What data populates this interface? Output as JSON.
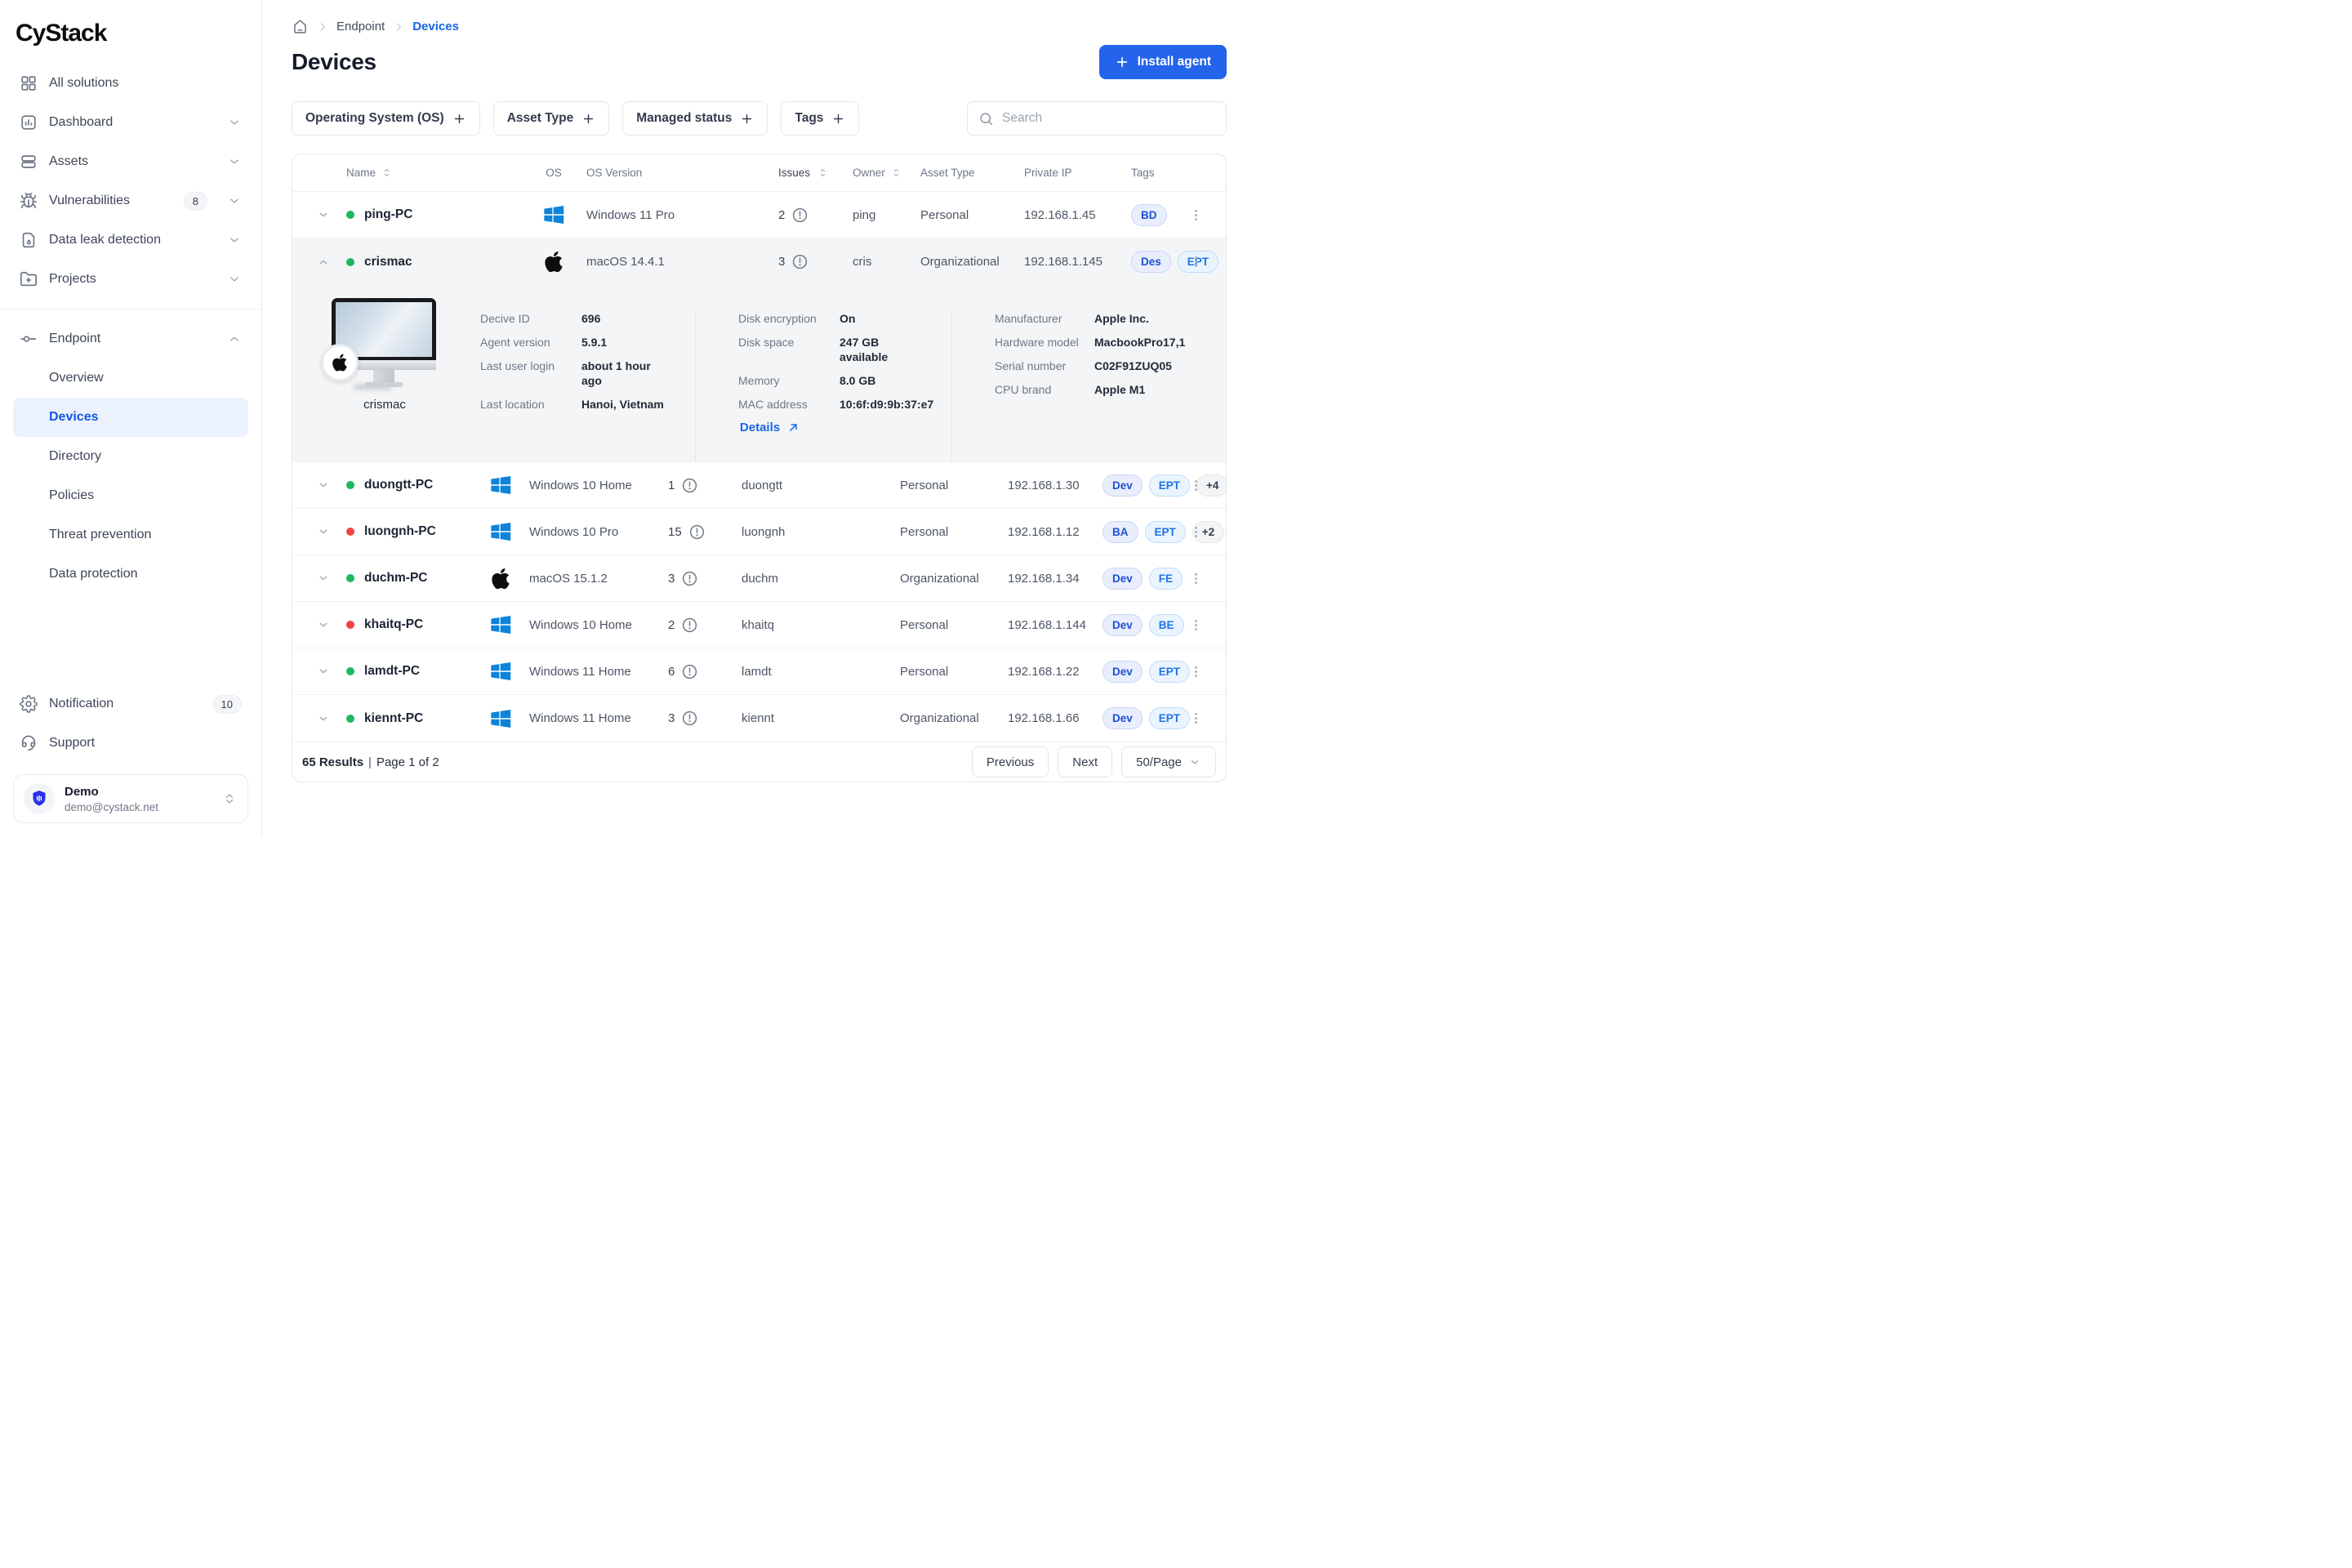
{
  "app": {
    "logo": "CyStack"
  },
  "colors": {
    "accent": "#2464eb",
    "link_blue": "#1766e8",
    "online": "#1cb85f",
    "offline": "#ef4444",
    "windows": "#0e83d8",
    "active_item_bg": "#ecf2fd",
    "tag_indigo_bg": "#e9eefc",
    "tag_indigo_text": "#1d4fd7",
    "tag_blue_bg": "#eaf4fe",
    "tag_blue_text": "#1e74e8"
  },
  "sidebar": {
    "items": [
      {
        "label": "All solutions",
        "icon": "grid-icon"
      },
      {
        "label": "Dashboard",
        "icon": "dashboard-icon",
        "chevron": "down"
      },
      {
        "label": "Assets",
        "icon": "assets-icon",
        "chevron": "down"
      },
      {
        "label": "Vulnerabilities",
        "icon": "bug-icon",
        "badge": "8",
        "chevron": "down"
      },
      {
        "label": "Data leak detection",
        "icon": "document-drop-icon",
        "chevron": "down"
      },
      {
        "label": "Projects",
        "icon": "folder-plus-icon",
        "chevron": "down"
      }
    ],
    "endpoint": {
      "label": "Endpoint",
      "chevron": "up",
      "children": [
        "Overview",
        "Devices",
        "Directory",
        "Policies",
        "Threat prevention",
        "Data protection"
      ],
      "active_child": "Devices"
    },
    "bottom": [
      {
        "label": "Notification",
        "icon": "gear-icon",
        "badge": "10"
      },
      {
        "label": "Support",
        "icon": "headset-icon"
      }
    ],
    "user": {
      "name": "Demo",
      "email": "demo@cystack.net"
    }
  },
  "breadcrumb": {
    "parent": "Endpoint",
    "current": "Devices"
  },
  "header": {
    "title": "Devices",
    "install_button": "Install agent"
  },
  "filters": {
    "chips": [
      "Operating System (OS)",
      "Asset Type",
      "Managed status",
      "Tags"
    ],
    "search_placeholder": "Search"
  },
  "table": {
    "columns": [
      "Name",
      "OS",
      "OS Version",
      "Issues",
      "Owner",
      "Asset Type",
      "Private IP",
      "Tags"
    ],
    "sortable_columns": [
      "Name",
      "Issues",
      "Owner"
    ],
    "rows": [
      {
        "name": "ping-PC",
        "status": "online",
        "os": "windows",
        "os_version": "Windows 11 Pro",
        "issues": "2",
        "owner": "ping",
        "asset_type": "Personal",
        "private_ip": "192.168.1.45",
        "tags": [
          {
            "label": "BD",
            "style": "indigo"
          }
        ],
        "expanded": false,
        "group": 1
      },
      {
        "name": "crismac",
        "status": "online",
        "os": "apple",
        "os_version": "macOS 14.4.1",
        "issues": "3",
        "owner": "cris",
        "asset_type": "Organizational",
        "private_ip": "192.168.1.145",
        "tags": [
          {
            "label": "Des",
            "style": "indigo"
          },
          {
            "label": "EPT",
            "style": "blue"
          }
        ],
        "expanded": true,
        "group": 1
      },
      {
        "name": "duongtt-PC",
        "status": "online",
        "os": "windows",
        "os_version": "Windows 10 Home",
        "issues": "1",
        "owner": "duongtt",
        "asset_type": "Personal",
        "private_ip": "192.168.1.30",
        "tags": [
          {
            "label": "Dev",
            "style": "indigo"
          },
          {
            "label": "EPT",
            "style": "blue"
          },
          {
            "label": "+4",
            "style": "gray"
          }
        ],
        "expanded": false,
        "group": 2
      },
      {
        "name": "luongnh-PC",
        "status": "offline",
        "os": "windows",
        "os_version": "Windows 10 Pro",
        "issues": "15",
        "owner": "luongnh",
        "asset_type": "Personal",
        "private_ip": "192.168.1.12",
        "tags": [
          {
            "label": "BA",
            "style": "indigo"
          },
          {
            "label": "EPT",
            "style": "blue"
          },
          {
            "label": "+2",
            "style": "gray"
          }
        ],
        "expanded": false,
        "group": 2
      },
      {
        "name": "duchm-PC",
        "status": "online",
        "os": "apple",
        "os_version": "macOS 15.1.2",
        "issues": "3",
        "owner": "duchm",
        "asset_type": "Organizational",
        "private_ip": "192.168.1.34",
        "tags": [
          {
            "label": "Dev",
            "style": "indigo"
          },
          {
            "label": "FE",
            "style": "blue"
          }
        ],
        "expanded": false,
        "group": 2
      },
      {
        "name": "khaitq-PC",
        "status": "offline",
        "os": "windows",
        "os_version": "Windows 10 Home",
        "issues": "2",
        "owner": "khaitq",
        "asset_type": "Personal",
        "private_ip": "192.168.1.144",
        "tags": [
          {
            "label": "Dev",
            "style": "indigo"
          },
          {
            "label": "BE",
            "style": "blue"
          }
        ],
        "expanded": false,
        "group": 2
      },
      {
        "name": "lamdt-PC",
        "status": "online",
        "os": "windows",
        "os_version": "Windows 11 Home",
        "issues": "6",
        "owner": "lamdt",
        "asset_type": "Personal",
        "private_ip": "192.168.1.22",
        "tags": [
          {
            "label": "Dev",
            "style": "indigo"
          },
          {
            "label": "EPT",
            "style": "blue"
          }
        ],
        "expanded": false,
        "group": 2
      },
      {
        "name": "kiennt-PC",
        "status": "online",
        "os": "windows",
        "os_version": "Windows 11 Home",
        "issues": "3",
        "owner": "kiennt",
        "asset_type": "Organizational",
        "private_ip": "192.168.1.66",
        "tags": [
          {
            "label": "Dev",
            "style": "indigo"
          },
          {
            "label": "EPT",
            "style": "blue"
          }
        ],
        "expanded": false,
        "group": 2
      }
    ]
  },
  "expanded_detail": {
    "device_caption": "crismac",
    "details_label": "Details",
    "sections": [
      {
        "rows": [
          {
            "label": "Decive ID",
            "value": "696"
          },
          {
            "label": "Agent version",
            "value": "5.9.1"
          },
          {
            "label": "Last user login",
            "value": "about 1 hour ago"
          },
          {
            "label": "Last location",
            "value": "Hanoi, Vietnam"
          }
        ]
      },
      {
        "rows": [
          {
            "label": "Disk encryption",
            "value": "On"
          },
          {
            "label": "Disk space",
            "value": "247 GB available"
          },
          {
            "label": "Memory",
            "value": "8.0 GB"
          },
          {
            "label": "MAC address",
            "value": "10:6f:d9:9b:37:e7"
          }
        ]
      },
      {
        "rows": [
          {
            "label": "Manufacturer",
            "value": "Apple Inc."
          },
          {
            "label": "Hardware model",
            "value": "MacbookPro17,1"
          },
          {
            "label": "Serial number",
            "value": "C02F91ZUQ05"
          },
          {
            "label": "CPU brand",
            "value": "Apple M1"
          }
        ]
      }
    ]
  },
  "footer": {
    "results": "65 Results",
    "separator": "|",
    "page": "Page 1 of 2",
    "previous": "Previous",
    "next": "Next",
    "page_size": "50/Page"
  }
}
